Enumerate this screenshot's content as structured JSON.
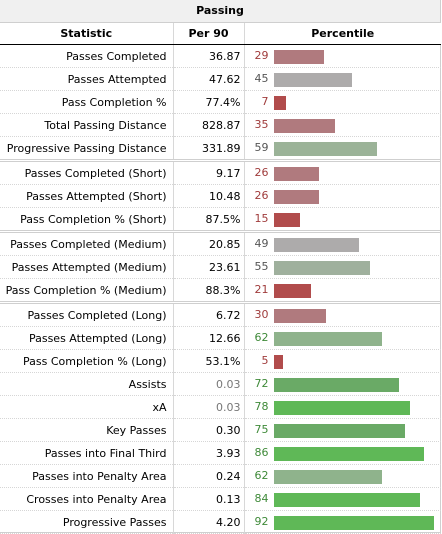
{
  "title": "Passing",
  "headers": {
    "statistic": "Statistic",
    "per90": "Per 90",
    "percentile": "Percentile"
  },
  "colors": {
    "dark_red": "#b14c4c",
    "red": "#b07a7e",
    "gray": "#adabab",
    "light_green": "#8fb38c",
    "green": "#6aaa66",
    "bright_green": "#5fb857"
  },
  "rows": [
    {
      "stat": "Passes Completed",
      "per90": "36.87",
      "pct": "29",
      "pct_value": 29,
      "color": "#b07a7e",
      "sep": false,
      "dim": false
    },
    {
      "stat": "Passes Attempted",
      "per90": "47.62",
      "pct": "45",
      "pct_value": 45,
      "color": "#adabab",
      "sep": false,
      "dim": false
    },
    {
      "stat": "Pass Completion %",
      "per90": "77.4%",
      "pct": "7",
      "pct_value": 7,
      "color": "#b14c4c",
      "sep": false,
      "dim": false
    },
    {
      "stat": "Total Passing Distance",
      "per90": "828.87",
      "pct": "35",
      "pct_value": 35,
      "color": "#b07a7e",
      "sep": false,
      "dim": false
    },
    {
      "stat": "Progressive Passing Distance",
      "per90": "331.89",
      "pct": "59",
      "pct_value": 59,
      "color": "#9bb398",
      "sep": false,
      "dim": false
    },
    {
      "stat": "Passes Completed (Short)",
      "per90": "9.17",
      "pct": "26",
      "pct_value": 26,
      "color": "#b07a7e",
      "sep": true,
      "dim": false
    },
    {
      "stat": "Passes Attempted (Short)",
      "per90": "10.48",
      "pct": "26",
      "pct_value": 26,
      "color": "#b07a7e",
      "sep": false,
      "dim": false
    },
    {
      "stat": "Pass Completion % (Short)",
      "per90": "87.5%",
      "pct": "15",
      "pct_value": 15,
      "color": "#b14c4c",
      "sep": false,
      "dim": false
    },
    {
      "stat": "Passes Completed (Medium)",
      "per90": "20.85",
      "pct": "49",
      "pct_value": 49,
      "color": "#adabab",
      "sep": true,
      "dim": false
    },
    {
      "stat": "Passes Attempted (Medium)",
      "per90": "23.61",
      "pct": "55",
      "pct_value": 55,
      "color": "#9fb09d",
      "sep": false,
      "dim": false
    },
    {
      "stat": "Pass Completion % (Medium)",
      "per90": "88.3%",
      "pct": "21",
      "pct_value": 21,
      "color": "#b14c4c",
      "sep": false,
      "dim": false
    },
    {
      "stat": "Passes Completed (Long)",
      "per90": "6.72",
      "pct": "30",
      "pct_value": 30,
      "color": "#b07a7e",
      "sep": true,
      "dim": false
    },
    {
      "stat": "Passes Attempted (Long)",
      "per90": "12.66",
      "pct": "62",
      "pct_value": 62,
      "color": "#8fb38c",
      "sep": false,
      "dim": false
    },
    {
      "stat": "Pass Completion % (Long)",
      "per90": "53.1%",
      "pct": "5",
      "pct_value": 5,
      "color": "#b14c4c",
      "sep": false,
      "dim": false
    },
    {
      "stat": "Assists",
      "per90": "0.03",
      "pct": "72",
      "pct_value": 72,
      "color": "#6aaa66",
      "sep": false,
      "dim": true
    },
    {
      "stat": "xA",
      "per90": "0.03",
      "pct": "78",
      "pct_value": 78,
      "color": "#5fb857",
      "sep": false,
      "dim": true
    },
    {
      "stat": "Key Passes",
      "per90": "0.30",
      "pct": "75",
      "pct_value": 75,
      "color": "#6aaa66",
      "sep": false,
      "dim": false
    },
    {
      "stat": "Passes into Final Third",
      "per90": "3.93",
      "pct": "86",
      "pct_value": 86,
      "color": "#5fb857",
      "sep": false,
      "dim": false
    },
    {
      "stat": "Passes into Penalty Area",
      "per90": "0.24",
      "pct": "62",
      "pct_value": 62,
      "color": "#8fb38c",
      "sep": false,
      "dim": false
    },
    {
      "stat": "Crosses into Penalty Area",
      "per90": "0.13",
      "pct": "84",
      "pct_value": 84,
      "color": "#5fb857",
      "sep": false,
      "dim": false
    },
    {
      "stat": "Progressive Passes",
      "per90": "4.20",
      "pct": "92",
      "pct_value": 92,
      "color": "#5fb857",
      "sep": false,
      "dim": false
    }
  ]
}
